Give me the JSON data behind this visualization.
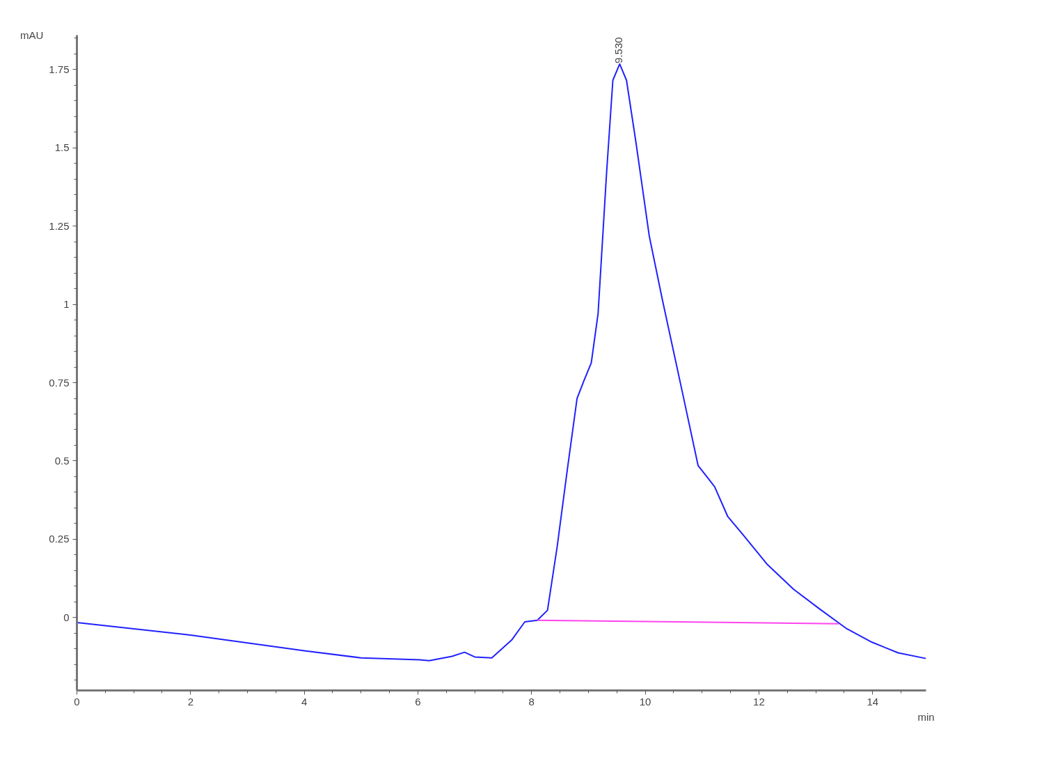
{
  "chart_data": {
    "type": "line",
    "xlabel": "min",
    "ylabel": "mAU",
    "x": [
      0,
      2,
      4,
      5,
      6.03,
      6.2,
      6.6,
      6.82,
      7.0,
      7.3,
      7.65,
      7.88,
      8.1,
      8.28,
      8.45,
      8.63,
      8.8,
      8.92,
      9.05,
      9.17,
      9.32,
      9.43,
      9.55,
      9.67,
      9.84,
      10.07,
      10.3,
      10.65,
      10.93,
      11.22,
      11.45,
      11.74,
      12.15,
      12.61,
      13.07,
      13.53,
      13.99,
      14.45,
      14.94
    ],
    "series": [
      {
        "color": "#2020ff",
        "values": [
          -0.016,
          -0.056,
          -0.106,
          -0.129,
          -0.135,
          -0.138,
          -0.124,
          -0.111,
          -0.126,
          -0.129,
          -0.072,
          -0.014,
          -0.009,
          0.023,
          0.226,
          0.474,
          0.7,
          0.756,
          0.813,
          0.971,
          1.422,
          1.716,
          1.768,
          1.716,
          1.513,
          1.219,
          1.016,
          0.722,
          0.485,
          0.418,
          0.323,
          0.26,
          0.169,
          0.09,
          0.027,
          -0.034,
          -0.079,
          -0.113,
          -0.131
        ]
      },
      {
        "type": "line",
        "color": "#ff44ee",
        "x": [
          8.1,
          13.4
        ],
        "values": [
          -0.009,
          -0.02
        ]
      }
    ],
    "annotations": [
      {
        "text": "9.530",
        "x": 9.53,
        "y": 1.77
      }
    ],
    "xlim": [
      0,
      14.94
    ],
    "ylim": [
      -0.233,
      1.86
    ],
    "xticks": [
      0,
      2,
      4,
      6,
      8,
      10,
      12,
      14
    ],
    "yticks": [
      0,
      0.25,
      0.5,
      0.75,
      1,
      1.25,
      1.5,
      1.75
    ],
    "grid": false,
    "marker": "none",
    "line_style": "solid"
  }
}
